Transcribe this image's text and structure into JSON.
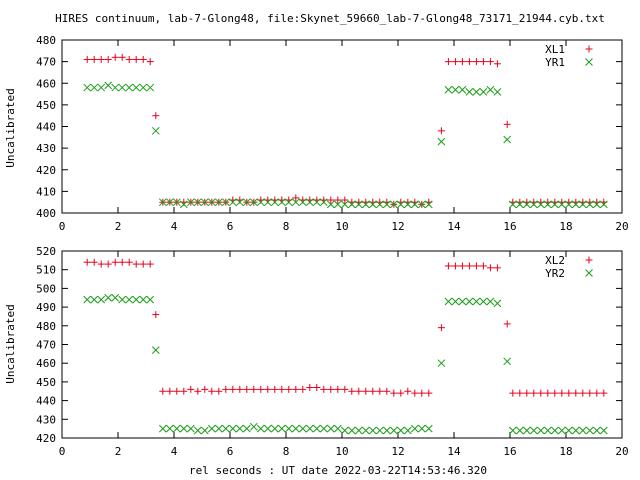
{
  "title": "HIRES continuum, lab-7-Glong48, file:Skynet_59660_lab-7-Glong48_73171_21944.cyb.txt",
  "xlabel": "rel seconds : UT date 2022-03-22T14:53:46.320",
  "colors": {
    "red": "#e8001c",
    "green": "#1a9e1a",
    "axis": "#000000"
  },
  "chart_data": [
    {
      "type": "scatter",
      "ylabel": "Uncalibrated",
      "xlim": [
        0,
        20
      ],
      "ylim": [
        400,
        480
      ],
      "xticks": [
        0,
        2,
        4,
        6,
        8,
        10,
        12,
        14,
        16,
        18,
        20
      ],
      "yticks": [
        400,
        410,
        420,
        430,
        440,
        450,
        460,
        470,
        480
      ],
      "legend_position": "top-right",
      "series": [
        {
          "name": "XL1",
          "marker": "plus",
          "color": "#e8001c",
          "x": [
            0.9,
            1.15,
            1.4,
            1.65,
            1.9,
            2.15,
            2.4,
            2.65,
            2.9,
            3.15,
            3.35,
            3.6,
            3.85,
            4.1,
            4.35,
            4.6,
            4.85,
            5.1,
            5.35,
            5.6,
            5.85,
            6.1,
            6.35,
            6.6,
            6.85,
            7.1,
            7.35,
            7.6,
            7.85,
            8.1,
            8.35,
            8.6,
            8.85,
            9.1,
            9.35,
            9.6,
            9.85,
            10.1,
            10.35,
            10.6,
            10.85,
            11.1,
            11.35,
            11.6,
            11.85,
            12.1,
            12.35,
            12.6,
            12.85,
            13.1,
            13.55,
            13.8,
            14.05,
            14.3,
            14.55,
            14.8,
            15.05,
            15.3,
            15.55,
            15.9,
            16.1,
            16.35,
            16.6,
            16.85,
            17.1,
            17.35,
            17.6,
            17.85,
            18.1,
            18.35,
            18.6,
            18.85,
            19.1,
            19.35
          ],
          "y": [
            471,
            471,
            471,
            471,
            472,
            472,
            471,
            471,
            471,
            470,
            445,
            405,
            405,
            405,
            405,
            405,
            405,
            405,
            405,
            405,
            405,
            406,
            406,
            405,
            405,
            406,
            406,
            406,
            406,
            406,
            407,
            406,
            406,
            406,
            406,
            406,
            406,
            406,
            405,
            405,
            405,
            405,
            405,
            405,
            404,
            405,
            405,
            405,
            404,
            405,
            438,
            470,
            470,
            470,
            470,
            470,
            470,
            470,
            469,
            441,
            405,
            405,
            405,
            405,
            405,
            405,
            405,
            405,
            405,
            405,
            405,
            405,
            405,
            405
          ]
        },
        {
          "name": "YR1",
          "marker": "cross",
          "color": "#1a9e1a",
          "x": [
            0.9,
            1.15,
            1.4,
            1.65,
            1.9,
            2.15,
            2.4,
            2.65,
            2.9,
            3.15,
            3.35,
            3.6,
            3.85,
            4.1,
            4.35,
            4.6,
            4.85,
            5.1,
            5.35,
            5.6,
            5.85,
            6.1,
            6.35,
            6.6,
            6.85,
            7.1,
            7.35,
            7.6,
            7.85,
            8.1,
            8.35,
            8.6,
            8.85,
            9.1,
            9.35,
            9.6,
            9.85,
            10.1,
            10.35,
            10.6,
            10.85,
            11.1,
            11.35,
            11.6,
            11.85,
            12.1,
            12.35,
            12.6,
            12.85,
            13.1,
            13.55,
            13.8,
            14.05,
            14.3,
            14.55,
            14.8,
            15.05,
            15.3,
            15.55,
            15.9,
            16.1,
            16.35,
            16.6,
            16.85,
            17.1,
            17.35,
            17.6,
            17.85,
            18.1,
            18.35,
            18.6,
            18.85,
            19.1,
            19.35
          ],
          "y": [
            458,
            458,
            458,
            459,
            458,
            458,
            458,
            458,
            458,
            458,
            438,
            405,
            405,
            405,
            404,
            405,
            405,
            405,
            405,
            405,
            405,
            405,
            405,
            405,
            405,
            405,
            405,
            405,
            405,
            405,
            405,
            405,
            405,
            405,
            405,
            404,
            404,
            404,
            404,
            404,
            404,
            404,
            404,
            404,
            404,
            404,
            404,
            404,
            404,
            404,
            433,
            457,
            457,
            457,
            456,
            456,
            456,
            457,
            456,
            434,
            404,
            404,
            404,
            404,
            404,
            404,
            404,
            404,
            404,
            404,
            404,
            404,
            404,
            404
          ]
        }
      ]
    },
    {
      "type": "scatter",
      "ylabel": "Uncalibrated",
      "xlabel": "rel seconds : UT date 2022-03-22T14:53:46.320",
      "xlim": [
        0,
        20
      ],
      "ylim": [
        420,
        520
      ],
      "xticks": [
        0,
        2,
        4,
        6,
        8,
        10,
        12,
        14,
        16,
        18,
        20
      ],
      "yticks": [
        420,
        430,
        440,
        450,
        460,
        470,
        480,
        490,
        500,
        510,
        520
      ],
      "legend_position": "top-right",
      "series": [
        {
          "name": "XL2",
          "marker": "plus",
          "color": "#e8001c",
          "x": [
            0.9,
            1.15,
            1.4,
            1.65,
            1.9,
            2.15,
            2.4,
            2.65,
            2.9,
            3.15,
            3.35,
            3.6,
            3.85,
            4.1,
            4.35,
            4.6,
            4.85,
            5.1,
            5.35,
            5.6,
            5.85,
            6.1,
            6.35,
            6.6,
            6.85,
            7.1,
            7.35,
            7.6,
            7.85,
            8.1,
            8.35,
            8.6,
            8.85,
            9.1,
            9.35,
            9.6,
            9.85,
            10.1,
            10.35,
            10.6,
            10.85,
            11.1,
            11.35,
            11.6,
            11.85,
            12.1,
            12.35,
            12.6,
            12.85,
            13.1,
            13.55,
            13.8,
            14.05,
            14.3,
            14.55,
            14.8,
            15.05,
            15.3,
            15.55,
            15.9,
            16.1,
            16.35,
            16.6,
            16.85,
            17.1,
            17.35,
            17.6,
            17.85,
            18.1,
            18.35,
            18.6,
            18.85,
            19.1,
            19.35
          ],
          "y": [
            514,
            514,
            513,
            513,
            514,
            514,
            514,
            513,
            513,
            513,
            486,
            445,
            445,
            445,
            445,
            446,
            445,
            446,
            445,
            445,
            446,
            446,
            446,
            446,
            446,
            446,
            446,
            446,
            446,
            446,
            446,
            446,
            447,
            447,
            446,
            446,
            446,
            446,
            445,
            445,
            445,
            445,
            445,
            445,
            444,
            444,
            445,
            444,
            444,
            444,
            479,
            512,
            512,
            512,
            512,
            512,
            512,
            511,
            511,
            481,
            444,
            444,
            444,
            444,
            444,
            444,
            444,
            444,
            444,
            444,
            444,
            444,
            444,
            444
          ]
        },
        {
          "name": "YR2",
          "marker": "cross",
          "color": "#1a9e1a",
          "x": [
            0.9,
            1.15,
            1.4,
            1.65,
            1.9,
            2.15,
            2.4,
            2.65,
            2.9,
            3.15,
            3.35,
            3.6,
            3.85,
            4.1,
            4.35,
            4.6,
            4.85,
            5.1,
            5.35,
            5.6,
            5.85,
            6.1,
            6.35,
            6.6,
            6.85,
            7.1,
            7.35,
            7.6,
            7.85,
            8.1,
            8.35,
            8.6,
            8.85,
            9.1,
            9.35,
            9.6,
            9.85,
            10.1,
            10.35,
            10.6,
            10.85,
            11.1,
            11.35,
            11.6,
            11.85,
            12.1,
            12.35,
            12.6,
            12.85,
            13.1,
            13.55,
            13.8,
            14.05,
            14.3,
            14.55,
            14.8,
            15.05,
            15.3,
            15.55,
            15.9,
            16.1,
            16.35,
            16.6,
            16.85,
            17.1,
            17.35,
            17.6,
            17.85,
            18.1,
            18.35,
            18.6,
            18.85,
            19.1,
            19.35
          ],
          "y": [
            494,
            494,
            494,
            495,
            495,
            494,
            494,
            494,
            494,
            494,
            467,
            425,
            425,
            425,
            425,
            425,
            424,
            424,
            425,
            425,
            425,
            425,
            425,
            425,
            426,
            425,
            425,
            425,
            425,
            425,
            425,
            425,
            425,
            425,
            425,
            425,
            425,
            424,
            424,
            424,
            424,
            424,
            424,
            424,
            424,
            424,
            424,
            425,
            425,
            425,
            460,
            493,
            493,
            493,
            493,
            493,
            493,
            493,
            492,
            461,
            424,
            424,
            424,
            424,
            424,
            424,
            424,
            424,
            424,
            424,
            424,
            424,
            424,
            424
          ]
        }
      ]
    }
  ]
}
